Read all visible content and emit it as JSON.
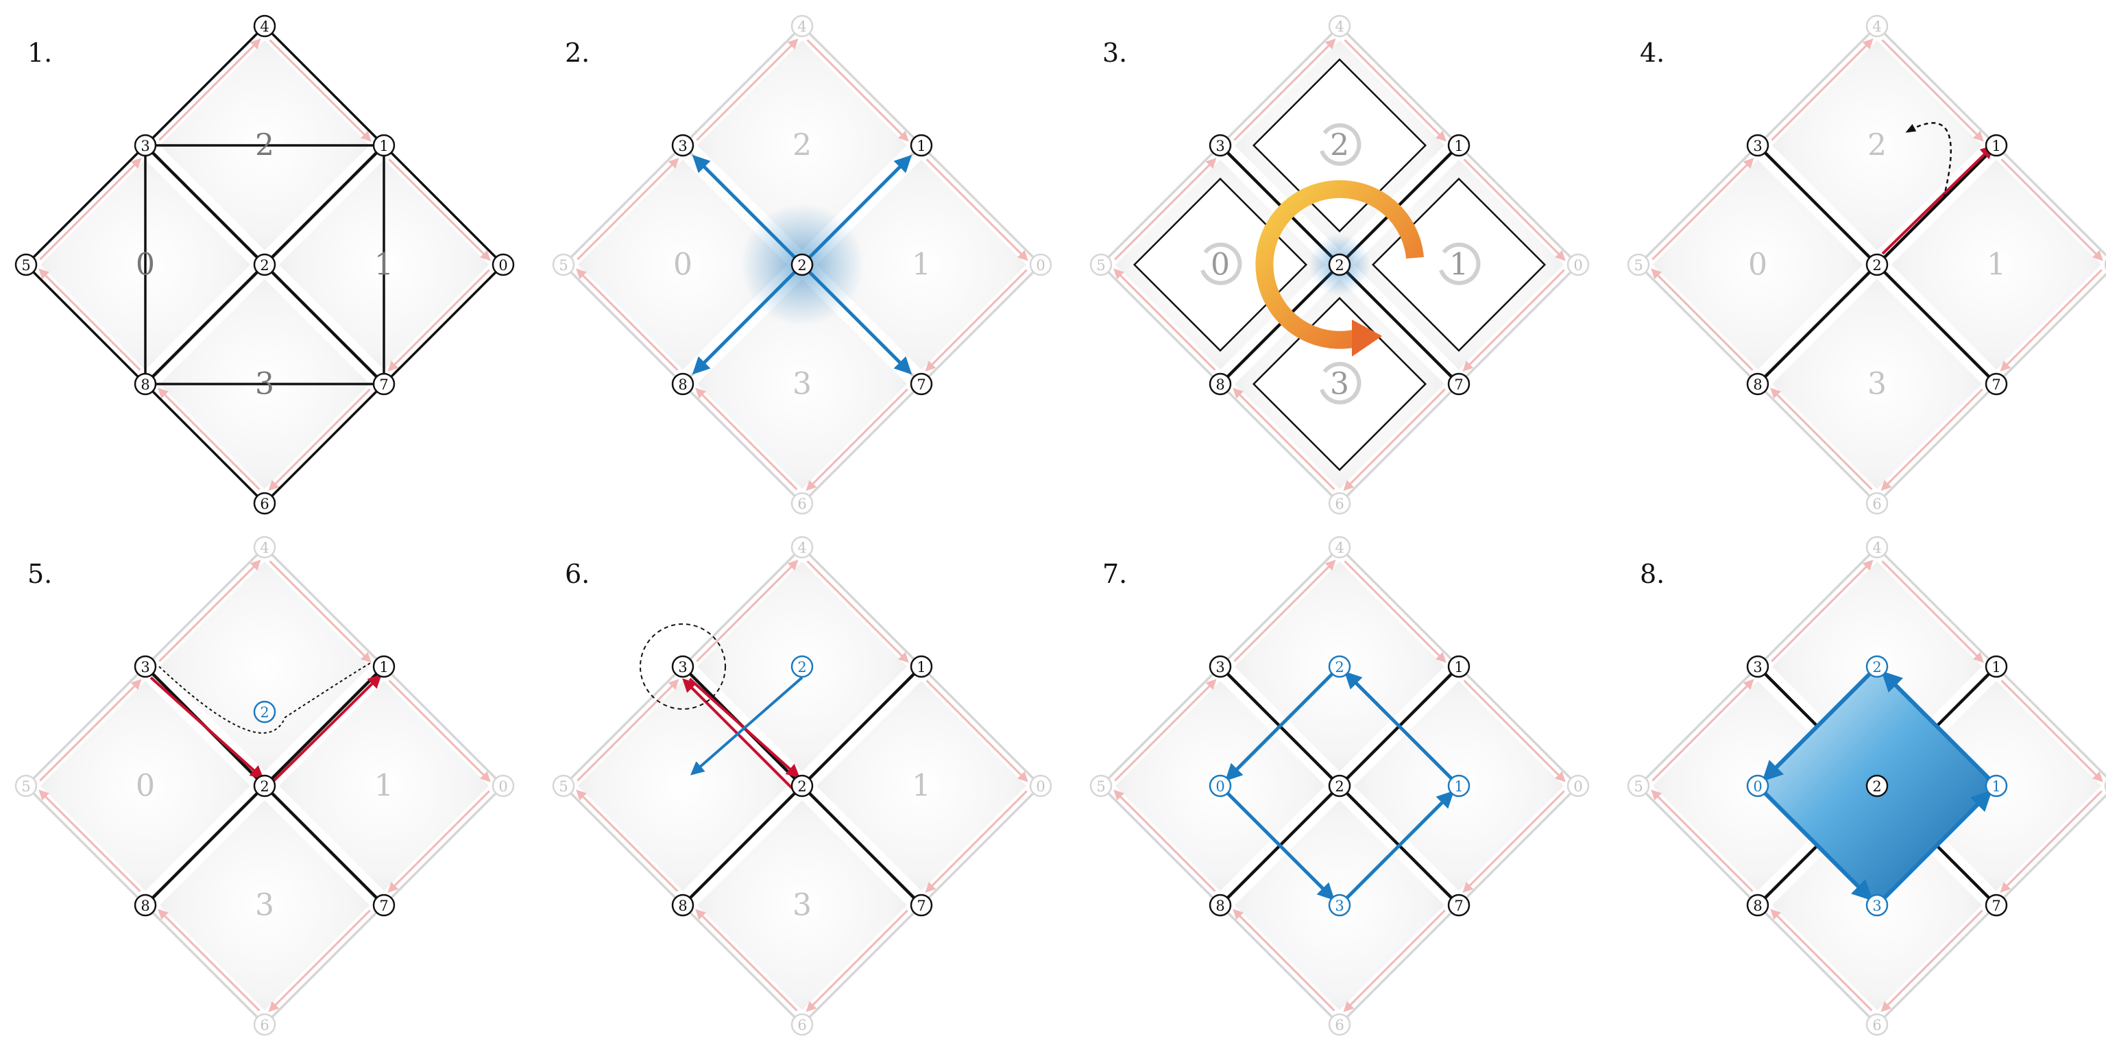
{
  "panels": [
    {
      "step": "1.",
      "faces": [
        {
          "id": "0",
          "label": "0"
        },
        {
          "id": "1",
          "label": "1"
        },
        {
          "id": "2",
          "label": "2"
        },
        {
          "id": "3",
          "label": "3"
        }
      ],
      "vertices": [
        "0",
        "1",
        "2",
        "3",
        "4",
        "5",
        "6",
        "7",
        "8"
      ],
      "highlight": "full mesh, all vertices and faces active"
    },
    {
      "step": "2.",
      "faces": [
        {
          "id": "0",
          "label": "0"
        },
        {
          "id": "1",
          "label": "1"
        },
        {
          "id": "2",
          "label": "2"
        },
        {
          "id": "3",
          "label": "3"
        }
      ],
      "vertices": [
        "0",
        "1",
        "2",
        "3",
        "4",
        "5",
        "6",
        "7",
        "8"
      ],
      "highlight": "vertex 2 selected, outgoing edges shown in blue"
    },
    {
      "step": "3.",
      "faces": [
        {
          "id": "0",
          "label": "0"
        },
        {
          "id": "1",
          "label": "1"
        },
        {
          "id": "2",
          "label": "2"
        },
        {
          "id": "3",
          "label": "3"
        }
      ],
      "vertices": [
        "0",
        "1",
        "2",
        "3",
        "4",
        "5",
        "6",
        "7",
        "8"
      ],
      "highlight": "faces around vertex 2 traversed in rotation order"
    },
    {
      "step": "4.",
      "faces": [
        {
          "id": "0",
          "label": "0"
        },
        {
          "id": "1",
          "label": "1"
        },
        {
          "id": "2",
          "label": "2"
        },
        {
          "id": "3",
          "label": "3"
        }
      ],
      "vertices": [
        "0",
        "1",
        "2",
        "3",
        "4",
        "5",
        "6",
        "7",
        "8"
      ],
      "highlight": "half-edge 2 to 1 in red, pointer to face 2"
    },
    {
      "step": "5.",
      "faces": [
        {
          "id": "0",
          "label": "0"
        },
        {
          "id": "1",
          "label": "1"
        },
        {
          "id": "3",
          "label": "3"
        }
      ],
      "vertices": [
        "0",
        "1",
        "2",
        "3",
        "4",
        "5",
        "6",
        "7",
        "8"
      ],
      "new_vertices": [
        "2"
      ],
      "highlight": "face 2 becomes new vertex 2"
    },
    {
      "step": "6.",
      "faces": [
        {
          "id": "1",
          "label": "1"
        },
        {
          "id": "3",
          "label": "3"
        }
      ],
      "vertices": [
        "0",
        "1",
        "2",
        "3",
        "4",
        "5",
        "6",
        "7",
        "8"
      ],
      "new_vertices": [
        "2",
        "0"
      ],
      "highlight": "new edge from 2 to 0"
    },
    {
      "step": "7.",
      "faces": [],
      "vertices": [
        "0",
        "1",
        "2",
        "3",
        "4",
        "5",
        "6",
        "7",
        "8"
      ],
      "new_vertices": [
        "2",
        "0",
        "1",
        "3"
      ],
      "highlight": "dual cycle 2, 0, 3, 1 constructed"
    },
    {
      "step": "8.",
      "faces": [],
      "vertices": [
        "0",
        "1",
        "2",
        "3",
        "4",
        "5",
        "6",
        "7",
        "8"
      ],
      "new_vertices": [
        "2",
        "0",
        "1",
        "3"
      ],
      "highlight": "new blue face formed"
    }
  ],
  "colors": {
    "edge": "#111111",
    "faded": "#d6d6d6",
    "faded_text": "#c4c4c4",
    "pink": "#f2b8b8",
    "red": "#c8102e",
    "blue": "#1b7ac0",
    "face_text": "#777777",
    "orange_start": "#f5c542",
    "orange_end": "#e9742b"
  }
}
